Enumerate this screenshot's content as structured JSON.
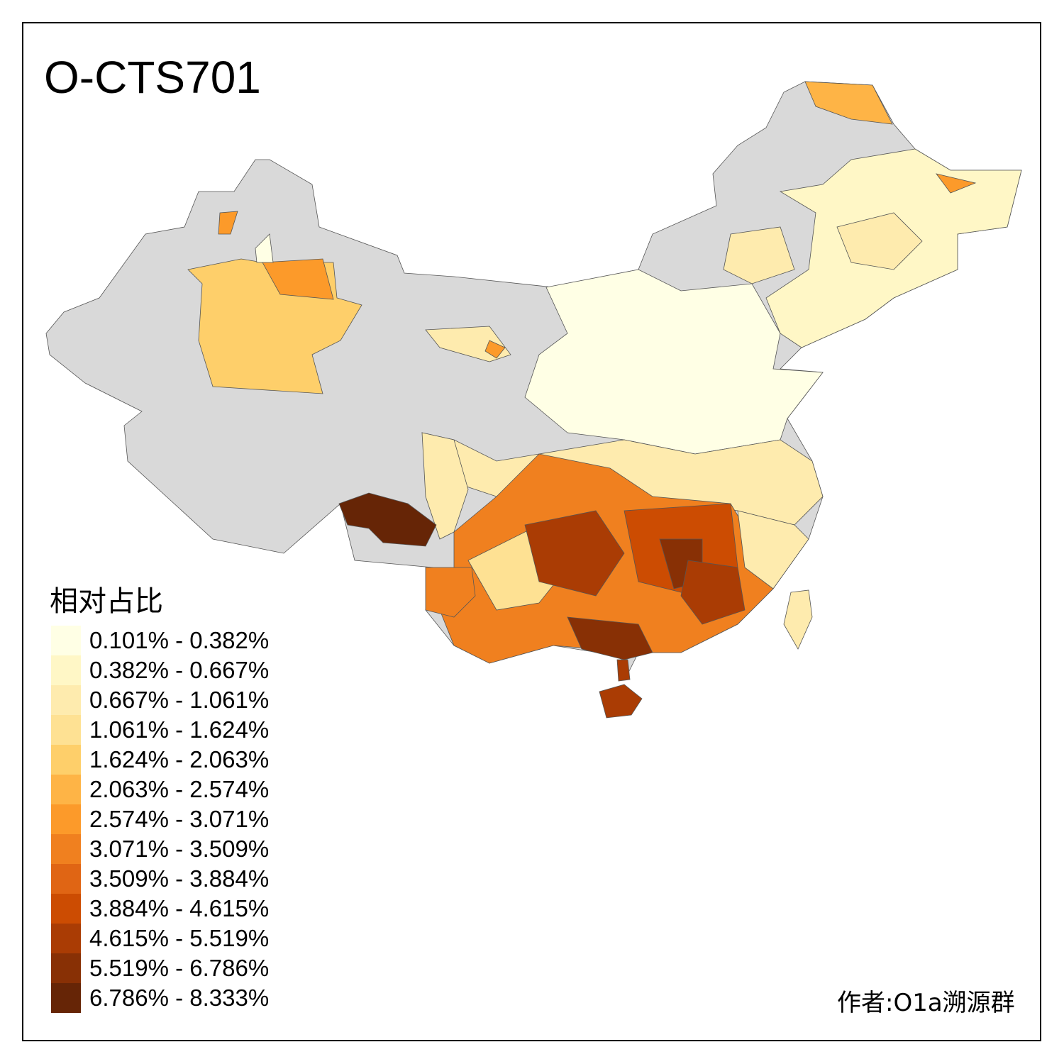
{
  "title": "O-CTS701",
  "legend": {
    "title": "相对占比",
    "items": [
      {
        "label": "0.101% - 0.382%",
        "color": "#FFFFE5"
      },
      {
        "label": "0.382% - 0.667%",
        "color": "#FFF7C6"
      },
      {
        "label": "0.667% - 1.061%",
        "color": "#FEEBAE"
      },
      {
        "label": "1.061% - 1.624%",
        "color": "#FEE193"
      },
      {
        "label": "1.624% - 2.063%",
        "color": "#FECF6A"
      },
      {
        "label": "2.063% - 2.574%",
        "color": "#FEB446"
      },
      {
        "label": "2.574% - 3.071%",
        "color": "#FC9A2A"
      },
      {
        "label": "3.071% - 3.509%",
        "color": "#F0801F"
      },
      {
        "label": "3.509% - 3.884%",
        "color": "#E06514"
      },
      {
        "label": "3.884% - 4.615%",
        "color": "#CC4C02"
      },
      {
        "label": "4.615% - 5.519%",
        "color": "#AA3C04"
      },
      {
        "label": "5.519% - 6.786%",
        "color": "#883005"
      },
      {
        "label": "6.786% - 8.333%",
        "color": "#662506"
      }
    ]
  },
  "no_data_color": "#D9D9D9",
  "author": "作者:O1a溯源群"
}
